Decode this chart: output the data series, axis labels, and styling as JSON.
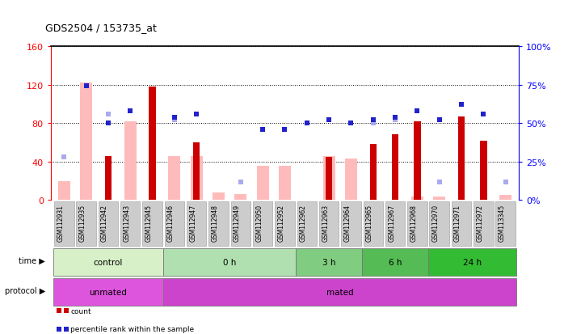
{
  "title": "GDS2504 / 153735_at",
  "samples": [
    "GSM112931",
    "GSM112935",
    "GSM112942",
    "GSM112943",
    "GSM112945",
    "GSM112946",
    "GSM112947",
    "GSM112948",
    "GSM112949",
    "GSM112950",
    "GSM112952",
    "GSM112962",
    "GSM112963",
    "GSM112964",
    "GSM112965",
    "GSM112967",
    "GSM112968",
    "GSM112970",
    "GSM112971",
    "GSM112972",
    "GSM113345"
  ],
  "count_values": [
    0,
    0,
    46,
    0,
    118,
    0,
    60,
    0,
    0,
    0,
    0,
    0,
    45,
    0,
    58,
    68,
    82,
    0,
    87,
    62,
    0
  ],
  "absent_value_bars": [
    20,
    122,
    0,
    82,
    0,
    46,
    46,
    8,
    6,
    36,
    36,
    0,
    46,
    43,
    0,
    0,
    4,
    4,
    0,
    0,
    5
  ],
  "absent_rank_dots": [
    28,
    0,
    56,
    0,
    0,
    52,
    0,
    0,
    12,
    46,
    46,
    50,
    0,
    0,
    50,
    52,
    0,
    12,
    0,
    0,
    12
  ],
  "blue_dots": [
    0,
    74,
    50,
    58,
    0,
    54,
    56,
    0,
    0,
    46,
    46,
    50,
    52,
    50,
    52,
    54,
    58,
    52,
    62,
    56,
    0
  ],
  "time_groups": [
    {
      "label": "control",
      "start": 0,
      "end": 5,
      "color": "#d8f0c8"
    },
    {
      "label": "0 h",
      "start": 5,
      "end": 11,
      "color": "#b0e0b0"
    },
    {
      "label": "3 h",
      "start": 11,
      "end": 14,
      "color": "#80cc80"
    },
    {
      "label": "6 h",
      "start": 14,
      "end": 17,
      "color": "#55bb55"
    },
    {
      "label": "24 h",
      "start": 17,
      "end": 21,
      "color": "#33bb33"
    }
  ],
  "protocol_groups": [
    {
      "label": "unmated",
      "start": 0,
      "end": 5,
      "color": "#dd55dd"
    },
    {
      "label": "mated",
      "start": 5,
      "end": 21,
      "color": "#cc44cc"
    }
  ],
  "left_ylim": [
    0,
    160
  ],
  "right_ylim": [
    0,
    100
  ],
  "left_yticks": [
    0,
    40,
    80,
    120,
    160
  ],
  "right_yticks": [
    0,
    25,
    50,
    75,
    100
  ],
  "left_yticklabels": [
    "0",
    "40",
    "80",
    "120",
    "160"
  ],
  "right_yticklabels": [
    "0%",
    "25%",
    "50%",
    "75%",
    "100%"
  ],
  "colors": {
    "count_bar": "#cc0000",
    "absent_value_bar": "#ffbbbb",
    "absent_rank_dot": "#aaaaee",
    "blue_dot": "#2222cc"
  }
}
